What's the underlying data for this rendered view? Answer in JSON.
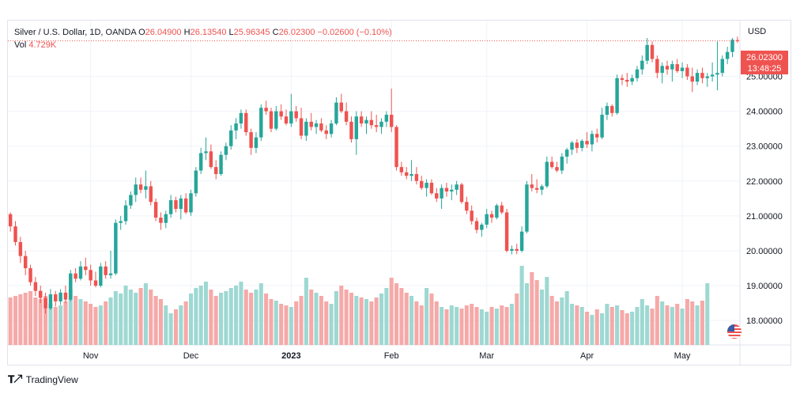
{
  "legend": {
    "title": "Silver / U.S. Dollar, 1D, OANDA",
    "o_label": "O",
    "o_value": "26.04900",
    "h_label": "H",
    "h_value": "26.13540",
    "l_label": "L",
    "l_value": "25.96345",
    "c_label": "C",
    "c_value": "26.02300",
    "change": "−0.02600 (−0.10%)",
    "vol_label": "Vol",
    "vol_value": "4.729K"
  },
  "currency": "USD",
  "last_price": "26.02300",
  "countdown": "13:48:25",
  "footer": {
    "brand": "TradingView",
    "logo": "tradingview-logo"
  },
  "colors": {
    "up": "#26a69a",
    "down": "#ef5350",
    "vol_up": "#9ed8d2",
    "vol_down": "#f5a9a8",
    "grid": "#f0f3fa"
  },
  "chart_data": {
    "type": "candlestick",
    "ylim": [
      17.3,
      26.6
    ],
    "y_ticks": [
      "18.00000",
      "19.00000",
      "20.00000",
      "21.00000",
      "22.00000",
      "23.00000",
      "24.00000",
      "25.00000"
    ],
    "y_tick_values": [
      18,
      19,
      20,
      21,
      22,
      23,
      24,
      25
    ],
    "x_tick_labels": [
      "Nov",
      "Dec",
      "2023",
      "Feb",
      "Mar",
      "Apr",
      "May"
    ],
    "x_tick_index": [
      16,
      36,
      56,
      76,
      95,
      115,
      134
    ],
    "grid": true,
    "ohlc": [
      [
        21.05,
        21.1,
        20.55,
        20.7
      ],
      [
        20.7,
        20.85,
        20.15,
        20.25
      ],
      [
        20.25,
        20.4,
        19.65,
        19.85
      ],
      [
        19.85,
        20.0,
        19.3,
        19.5
      ],
      [
        19.5,
        19.6,
        19.0,
        19.1
      ],
      [
        19.1,
        19.25,
        18.7,
        18.85
      ],
      [
        18.85,
        19.0,
        18.5,
        18.65
      ],
      [
        18.65,
        18.8,
        18.2,
        18.35
      ],
      [
        18.35,
        18.9,
        18.3,
        18.75
      ],
      [
        18.75,
        18.85,
        18.4,
        18.55
      ],
      [
        18.55,
        18.9,
        18.45,
        18.8
      ],
      [
        18.8,
        19.0,
        18.5,
        18.6
      ],
      [
        18.6,
        19.45,
        18.55,
        19.35
      ],
      [
        19.35,
        19.5,
        19.1,
        19.2
      ],
      [
        19.2,
        19.7,
        19.15,
        19.55
      ],
      [
        19.55,
        19.8,
        19.3,
        19.45
      ],
      [
        19.45,
        19.6,
        19.0,
        19.15
      ],
      [
        19.15,
        19.4,
        18.95,
        19.0
      ],
      [
        19.0,
        19.65,
        18.95,
        19.55
      ],
      [
        19.55,
        19.7,
        19.2,
        19.3
      ],
      [
        19.3,
        20.0,
        19.2,
        19.35
      ],
      [
        19.35,
        20.9,
        19.3,
        20.8
      ],
      [
        20.8,
        21.0,
        20.6,
        20.85
      ],
      [
        20.85,
        21.45,
        20.75,
        21.3
      ],
      [
        21.3,
        21.7,
        21.2,
        21.6
      ],
      [
        21.6,
        22.1,
        21.4,
        21.9
      ],
      [
        21.9,
        22.1,
        21.65,
        21.75
      ],
      [
        21.75,
        22.3,
        21.5,
        21.85
      ],
      [
        21.85,
        22.0,
        21.3,
        21.4
      ],
      [
        21.4,
        21.5,
        20.85,
        20.95
      ],
      [
        20.95,
        21.1,
        20.6,
        20.8
      ],
      [
        20.8,
        21.15,
        20.65,
        21.05
      ],
      [
        21.05,
        21.6,
        20.95,
        21.45
      ],
      [
        21.45,
        21.55,
        21.1,
        21.2
      ],
      [
        21.2,
        21.6,
        20.9,
        21.5
      ],
      [
        21.5,
        21.65,
        21.05,
        21.1
      ],
      [
        21.1,
        21.75,
        21.0,
        21.65
      ],
      [
        21.65,
        22.4,
        21.55,
        22.3
      ],
      [
        22.3,
        22.95,
        22.2,
        22.8
      ],
      [
        22.8,
        23.25,
        22.6,
        22.85
      ],
      [
        22.85,
        23.05,
        22.35,
        22.4
      ],
      [
        22.4,
        22.6,
        22.05,
        22.2
      ],
      [
        22.2,
        22.85,
        22.15,
        22.75
      ],
      [
        22.75,
        23.1,
        22.6,
        23.0
      ],
      [
        23.0,
        23.6,
        22.9,
        23.45
      ],
      [
        23.45,
        23.8,
        23.2,
        23.65
      ],
      [
        23.65,
        24.05,
        23.5,
        23.95
      ],
      [
        23.95,
        24.05,
        23.3,
        23.4
      ],
      [
        23.4,
        23.5,
        22.75,
        22.95
      ],
      [
        22.95,
        23.4,
        22.8,
        23.25
      ],
      [
        23.25,
        24.2,
        23.15,
        24.1
      ],
      [
        24.1,
        24.3,
        23.9,
        24.0
      ],
      [
        24.0,
        24.1,
        23.4,
        23.5
      ],
      [
        23.5,
        24.15,
        23.45,
        24.0
      ],
      [
        24.0,
        24.2,
        23.75,
        23.85
      ],
      [
        23.85,
        24.05,
        23.6,
        23.65
      ],
      [
        23.65,
        24.5,
        23.55,
        24.0
      ],
      [
        24.0,
        24.15,
        23.7,
        23.8
      ],
      [
        23.8,
        24.1,
        23.2,
        23.3
      ],
      [
        23.3,
        23.8,
        23.15,
        23.7
      ],
      [
        23.7,
        23.95,
        23.45,
        23.55
      ],
      [
        23.55,
        23.75,
        23.35,
        23.65
      ],
      [
        23.65,
        23.8,
        23.4,
        23.45
      ],
      [
        23.45,
        23.6,
        23.2,
        23.35
      ],
      [
        23.35,
        23.75,
        23.25,
        23.65
      ],
      [
        23.65,
        24.4,
        23.6,
        24.25
      ],
      [
        24.25,
        24.5,
        23.95,
        24.0
      ],
      [
        24.0,
        24.25,
        23.6,
        23.7
      ],
      [
        23.7,
        23.85,
        23.1,
        23.2
      ],
      [
        23.2,
        24.0,
        22.75,
        23.85
      ],
      [
        23.85,
        24.0,
        23.55,
        23.65
      ],
      [
        23.65,
        23.85,
        23.35,
        23.75
      ],
      [
        23.75,
        24.0,
        23.5,
        23.6
      ],
      [
        23.6,
        23.9,
        23.4,
        23.55
      ],
      [
        23.55,
        23.8,
        23.35,
        23.7
      ],
      [
        23.7,
        24.0,
        23.55,
        23.9
      ],
      [
        23.9,
        24.65,
        23.4,
        23.55
      ],
      [
        23.55,
        23.6,
        22.3,
        22.4
      ],
      [
        22.4,
        22.55,
        22.15,
        22.25
      ],
      [
        22.25,
        22.4,
        22.05,
        22.15
      ],
      [
        22.15,
        22.6,
        22.0,
        22.2
      ],
      [
        22.2,
        22.4,
        21.9,
        22.0
      ],
      [
        22.0,
        22.15,
        21.75,
        21.8
      ],
      [
        21.8,
        22.05,
        21.55,
        21.95
      ],
      [
        21.95,
        22.05,
        21.6,
        21.65
      ],
      [
        21.65,
        21.8,
        21.4,
        21.5
      ],
      [
        21.5,
        21.9,
        21.2,
        21.8
      ],
      [
        21.8,
        21.95,
        21.55,
        21.7
      ],
      [
        21.7,
        21.9,
        21.45,
        21.75
      ],
      [
        21.75,
        22.0,
        21.6,
        21.9
      ],
      [
        21.9,
        21.95,
        21.35,
        21.4
      ],
      [
        21.4,
        21.55,
        21.05,
        21.15
      ],
      [
        21.15,
        21.3,
        20.75,
        20.85
      ],
      [
        20.85,
        20.95,
        20.5,
        20.6
      ],
      [
        20.6,
        20.8,
        20.4,
        20.75
      ],
      [
        20.75,
        21.2,
        20.65,
        21.05
      ],
      [
        21.05,
        21.15,
        20.8,
        20.95
      ],
      [
        20.95,
        21.35,
        20.9,
        21.3
      ],
      [
        21.3,
        21.4,
        21.05,
        21.1
      ],
      [
        21.1,
        21.2,
        19.95,
        20.0
      ],
      [
        20.0,
        20.15,
        19.9,
        20.05
      ],
      [
        20.05,
        20.2,
        19.9,
        20.0
      ],
      [
        20.0,
        20.7,
        19.95,
        20.55
      ],
      [
        20.55,
        22.0,
        20.5,
        21.9
      ],
      [
        21.9,
        22.2,
        21.7,
        21.8
      ],
      [
        21.8,
        22.05,
        21.65,
        21.75
      ],
      [
        21.75,
        21.9,
        21.6,
        21.85
      ],
      [
        21.85,
        22.7,
        21.8,
        22.55
      ],
      [
        22.55,
        22.7,
        22.35,
        22.4
      ],
      [
        22.4,
        22.55,
        22.25,
        22.3
      ],
      [
        22.3,
        22.8,
        22.2,
        22.7
      ],
      [
        22.7,
        22.95,
        22.5,
        22.9
      ],
      [
        22.9,
        23.15,
        22.75,
        23.1
      ],
      [
        23.1,
        23.2,
        22.8,
        22.95
      ],
      [
        22.95,
        23.2,
        22.85,
        23.15
      ],
      [
        23.15,
        23.4,
        22.95,
        23.05
      ],
      [
        23.05,
        23.45,
        22.85,
        23.35
      ],
      [
        23.35,
        23.5,
        23.1,
        23.25
      ],
      [
        23.25,
        24.1,
        23.2,
        23.9
      ],
      [
        23.9,
        24.25,
        23.75,
        24.15
      ],
      [
        24.15,
        24.2,
        23.85,
        23.95
      ],
      [
        23.95,
        25.05,
        23.9,
        24.95
      ],
      [
        24.95,
        25.05,
        24.75,
        24.9
      ],
      [
        24.9,
        25.1,
        24.7,
        24.85
      ],
      [
        24.85,
        25.05,
        24.75,
        24.95
      ],
      [
        24.95,
        25.3,
        24.85,
        25.2
      ],
      [
        25.2,
        25.6,
        25.05,
        25.45
      ],
      [
        25.45,
        26.1,
        25.35,
        25.9
      ],
      [
        25.9,
        26.0,
        25.4,
        25.5
      ],
      [
        25.5,
        25.6,
        24.95,
        25.1
      ],
      [
        25.1,
        25.4,
        24.8,
        25.3
      ],
      [
        25.3,
        25.45,
        25.05,
        25.2
      ],
      [
        25.2,
        25.45,
        24.85,
        25.35
      ],
      [
        25.35,
        25.5,
        25.1,
        25.15
      ],
      [
        25.15,
        25.4,
        24.95,
        25.25
      ],
      [
        25.25,
        25.35,
        24.9,
        25.0
      ],
      [
        25.0,
        25.25,
        24.55,
        24.85
      ],
      [
        24.85,
        25.2,
        24.75,
        25.1
      ],
      [
        25.1,
        25.25,
        24.8,
        24.95
      ],
      [
        24.95,
        25.1,
        24.7,
        25.0
      ],
      [
        25.0,
        25.4,
        24.85,
        25.05
      ],
      [
        25.05,
        26.0,
        24.6,
        25.1
      ],
      [
        25.1,
        25.6,
        25.0,
        25.5
      ],
      [
        25.5,
        25.85,
        25.35,
        25.7
      ],
      [
        25.7,
        26.1,
        25.55,
        26.05
      ],
      [
        26.04,
        26.14,
        25.96,
        26.02
      ]
    ],
    "volume": [
      0.6,
      0.62,
      0.64,
      0.66,
      0.68,
      0.6,
      0.58,
      0.62,
      0.52,
      0.48,
      0.5,
      0.55,
      0.7,
      0.62,
      0.58,
      0.55,
      0.52,
      0.48,
      0.5,
      0.55,
      0.6,
      0.68,
      0.65,
      0.75,
      0.7,
      0.66,
      0.72,
      0.78,
      0.7,
      0.62,
      0.58,
      0.5,
      0.4,
      0.45,
      0.5,
      0.55,
      0.65,
      0.72,
      0.75,
      0.8,
      0.7,
      0.62,
      0.66,
      0.68,
      0.72,
      0.75,
      0.8,
      0.7,
      0.66,
      0.7,
      0.78,
      0.65,
      0.58,
      0.56,
      0.52,
      0.5,
      0.48,
      0.55,
      0.62,
      0.85,
      0.7,
      0.66,
      0.62,
      0.55,
      0.52,
      0.68,
      0.75,
      0.7,
      0.66,
      0.62,
      0.6,
      0.58,
      0.55,
      0.6,
      0.65,
      0.72,
      0.85,
      0.78,
      0.72,
      0.66,
      0.62,
      0.55,
      0.5,
      0.72,
      0.65,
      0.55,
      0.48,
      0.45,
      0.5,
      0.48,
      0.46,
      0.5,
      0.52,
      0.48,
      0.45,
      0.42,
      0.48,
      0.46,
      0.5,
      0.48,
      0.52,
      0.65,
      1.0,
      0.78,
      0.92,
      0.82,
      0.7,
      0.86,
      0.62,
      0.55,
      0.6,
      0.68,
      0.52,
      0.5,
      0.48,
      0.42,
      0.38,
      0.45,
      0.4,
      0.52,
      0.48,
      0.5,
      0.44,
      0.4,
      0.42,
      0.48,
      0.58,
      0.5,
      0.46,
      0.62,
      0.55,
      0.5,
      0.48,
      0.52,
      0.46,
      0.58,
      0.55,
      0.5,
      0.56,
      0.78
    ]
  }
}
